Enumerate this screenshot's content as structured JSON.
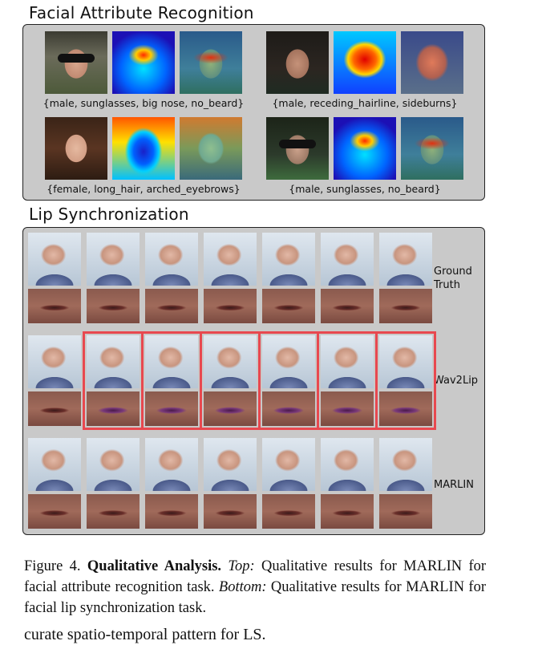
{
  "sections": {
    "far_title": "Facial Attribute Recognition",
    "ls_title": "Lip Synchronization"
  },
  "far": {
    "captions": [
      "{male, sunglasses, big nose, no_beard}",
      "{male, receding_hairline, sideburns}",
      "{female, long_hair, arched_eyebrows}",
      "{male, sunglasses, no_beard}"
    ]
  },
  "ls": {
    "rows": [
      {
        "label": "Ground\nTruth"
      },
      {
        "label": "Wav2Lip"
      },
      {
        "label": "MARLIN"
      }
    ],
    "highlight_color": "#e8484f"
  },
  "caption": {
    "prefix": "Figure 4.",
    "bold": "Qualitative Analysis.",
    "top_label": "Top:",
    "top_text": "Qualitative results for MARLIN for facial attribute recognition task.",
    "bottom_label": "Bottom:",
    "bottom_text": "Qualitative results for MARLIN for facial lip synchronization task.",
    "trailing": "curate spatio-temporal pattern for LS."
  }
}
